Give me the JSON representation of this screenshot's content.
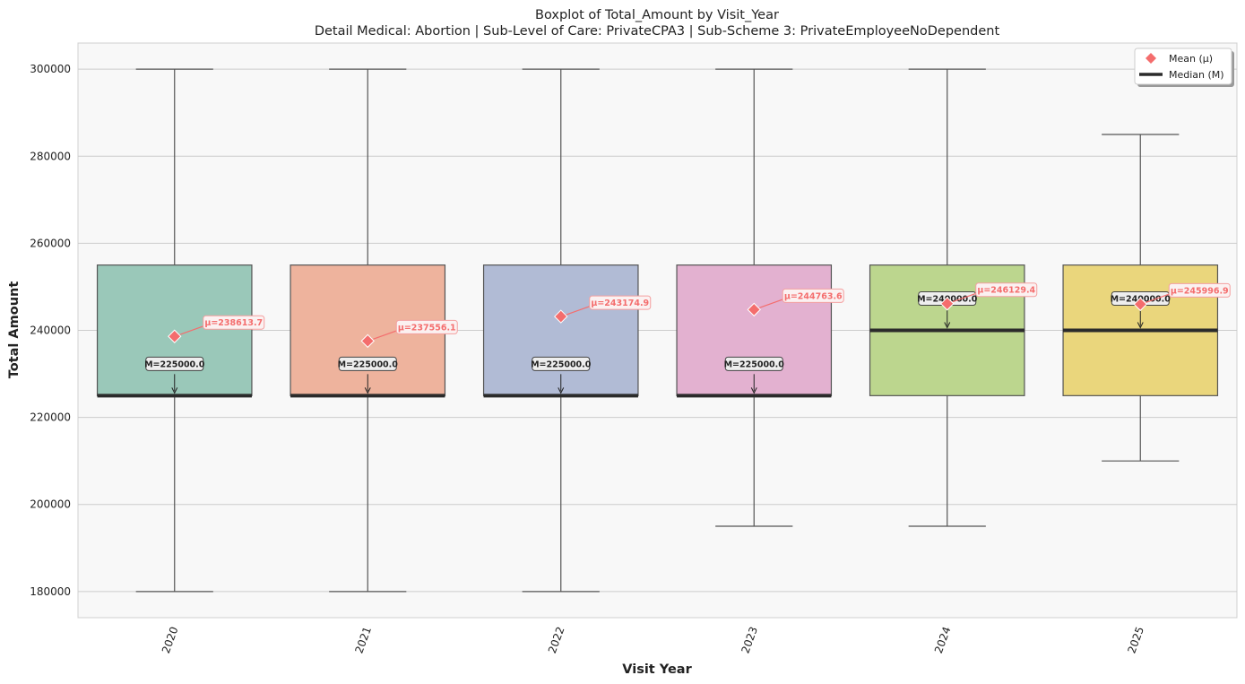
{
  "chart_data": {
    "type": "box",
    "title": "Boxplot of Total_Amount by Visit_Year",
    "subtitle": "Detail Medical: Abortion | Sub-Level of Care: PrivateCPA3 | Sub-Scheme 3: PrivateEmployeeNoDependent",
    "xlabel": "Visit Year",
    "ylabel": "Total Amount",
    "ylim": [
      174000,
      306000
    ],
    "yticks": [
      180000,
      200000,
      220000,
      240000,
      260000,
      280000,
      300000
    ],
    "grid": true,
    "legend": {
      "placement": "top-right",
      "entries": [
        {
          "label": "Mean (μ)",
          "marker": "diamond",
          "color": "#f46d6d"
        },
        {
          "label": "Median (M)",
          "marker": "line",
          "color": "#2b2b2b"
        }
      ]
    },
    "categories": [
      "2020",
      "2021",
      "2022",
      "2023",
      "2024",
      "2025"
    ],
    "boxes": [
      {
        "category": "2020",
        "whisker_low": 180000,
        "q1": 225000,
        "median": 225000,
        "q3": 255000,
        "whisker_high": 300000,
        "mean": 238613.7,
        "median_label": "M=225000.0",
        "mean_label": "μ=238613.7",
        "color": "#9ac8b9"
      },
      {
        "category": "2021",
        "whisker_low": 180000,
        "q1": 225000,
        "median": 225000,
        "q3": 255000,
        "whisker_high": 300000,
        "mean": 237556.1,
        "median_label": "M=225000.0",
        "mean_label": "μ=237556.1",
        "color": "#eeb39d"
      },
      {
        "category": "2022",
        "whisker_low": 180000,
        "q1": 225000,
        "median": 225000,
        "q3": 255000,
        "whisker_high": 300000,
        "mean": 243174.9,
        "median_label": "M=225000.0",
        "mean_label": "μ=243174.9",
        "color": "#b1bbd5"
      },
      {
        "category": "2023",
        "whisker_low": 195000,
        "q1": 225000,
        "median": 225000,
        "q3": 255000,
        "whisker_high": 300000,
        "mean": 244763.6,
        "median_label": "M=225000.0",
        "mean_label": "μ=244763.6",
        "color": "#e3b1d0"
      },
      {
        "category": "2024",
        "whisker_low": 195000,
        "q1": 225000,
        "median": 240000,
        "q3": 255000,
        "whisker_high": 300000,
        "mean": 246129.4,
        "median_label": "M=240000.0",
        "mean_label": "μ=246129.4",
        "color": "#bcd68e"
      },
      {
        "category": "2025",
        "whisker_low": 210000,
        "q1": 225000,
        "median": 240000,
        "q3": 255000,
        "whisker_high": 285000,
        "mean": 245996.9,
        "median_label": "M=240000.0",
        "mean_label": "μ=245996.9",
        "color": "#ead67c"
      }
    ],
    "colors": {
      "plot_background": "#f8f8f8",
      "grid": "#cccccc",
      "box_edge": "#555555",
      "median_line": "#2b2b2b",
      "mean_marker": "#f46d6d",
      "mean_label_border": "#f4a0a0",
      "median_label_bg": "#eeeeee"
    }
  }
}
